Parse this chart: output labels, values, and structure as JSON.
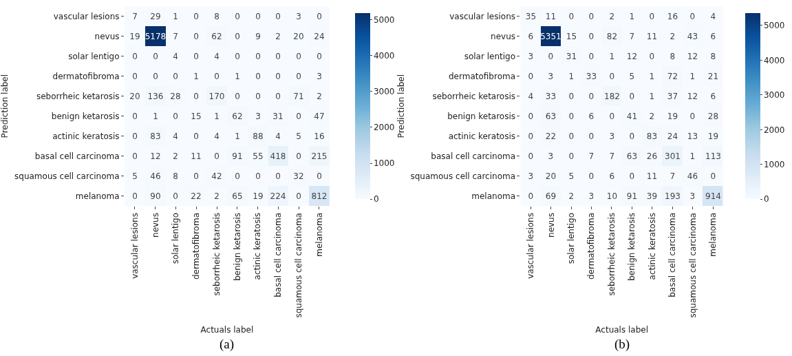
{
  "chart_data": [
    {
      "type": "heatmap",
      "xlabel": "Actuals label",
      "ylabel": "Prediction label",
      "annotations": [
        "(a)"
      ],
      "data_labels": true,
      "categories": [
        "vascular lesions",
        "nevus",
        "solar lentigo",
        "dermatofibroma",
        "seborrheic ketarosis",
        "benign ketarosis",
        "actinic keratosis",
        "basal cell carcinoma",
        "squamous cell carcinoma",
        "melanoma"
      ],
      "y_categories": [
        "vascular lesions",
        "nevus",
        "solar lentigo",
        "dermatofibroma",
        "seborrheic ketarosis",
        "benign ketarosis",
        "actinic keratosis",
        "basal cell carcinoma",
        "squamous cell carcinoma",
        "melanoma"
      ],
      "cells": [
        [
          7,
          29,
          1,
          0,
          8,
          0,
          0,
          0,
          3,
          0
        ],
        [
          19,
          5178,
          7,
          0,
          62,
          0,
          9,
          2,
          20,
          24
        ],
        [
          0,
          0,
          4,
          0,
          4,
          0,
          0,
          0,
          0,
          0
        ],
        [
          0,
          0,
          0,
          1,
          0,
          1,
          0,
          0,
          0,
          3
        ],
        [
          20,
          136,
          28,
          0,
          170,
          0,
          0,
          0,
          71,
          2
        ],
        [
          0,
          1,
          0,
          15,
          1,
          62,
          3,
          31,
          0,
          47
        ],
        [
          0,
          83,
          4,
          0,
          4,
          1,
          88,
          4,
          5,
          16
        ],
        [
          0,
          12,
          2,
          11,
          0,
          91,
          55,
          418,
          0,
          215
        ],
        [
          5,
          46,
          8,
          0,
          42,
          0,
          0,
          0,
          32,
          0
        ],
        [
          0,
          90,
          0,
          22,
          2,
          65,
          19,
          224,
          0,
          812
        ]
      ],
      "clim": [
        0,
        5178
      ],
      "cticks": [
        0,
        1000,
        2000,
        3000,
        4000,
        5000
      ]
    },
    {
      "type": "heatmap",
      "xlabel": "Actuals label",
      "ylabel": "Prediction label",
      "annotations": [
        "(b)"
      ],
      "data_labels": true,
      "categories": [
        "vascular lesions",
        "nevus",
        "solar lentigo",
        "dermatofibroma",
        "seborrheic ketarosis",
        "benign ketarosis",
        "actinic keratosis",
        "basal cell carcinoma",
        "squamous cell carcinoma",
        "melanoma"
      ],
      "y_categories": [
        "vascular lesions",
        "nevus",
        "solar lentigo",
        "dermatofibroma",
        "seborrheic ketarosis",
        "benign ketarosis",
        "actinic keratosis",
        "basal cell carcinoma",
        "squamous cell carcinoma",
        "melanoma"
      ],
      "cells": [
        [
          35,
          11,
          0,
          0,
          2,
          1,
          0,
          16,
          0,
          4
        ],
        [
          6,
          5351,
          15,
          0,
          82,
          7,
          11,
          2,
          43,
          6
        ],
        [
          3,
          0,
          31,
          0,
          1,
          12,
          0,
          8,
          12,
          8
        ],
        [
          0,
          3,
          1,
          33,
          0,
          5,
          1,
          72,
          1,
          21
        ],
        [
          4,
          33,
          0,
          0,
          182,
          0,
          1,
          37,
          12,
          6
        ],
        [
          0,
          63,
          0,
          6,
          0,
          41,
          2,
          19,
          0,
          28
        ],
        [
          0,
          22,
          0,
          0,
          3,
          0,
          83,
          24,
          13,
          19
        ],
        [
          0,
          3,
          0,
          7,
          7,
          63,
          26,
          301,
          1,
          113
        ],
        [
          3,
          20,
          5,
          0,
          6,
          0,
          11,
          7,
          46,
          0
        ],
        [
          0,
          69,
          2,
          3,
          10,
          91,
          39,
          193,
          3,
          914
        ]
      ],
      "clim": [
        0,
        5351
      ],
      "cticks": [
        0,
        1000,
        2000,
        3000,
        4000,
        5000
      ]
    }
  ]
}
